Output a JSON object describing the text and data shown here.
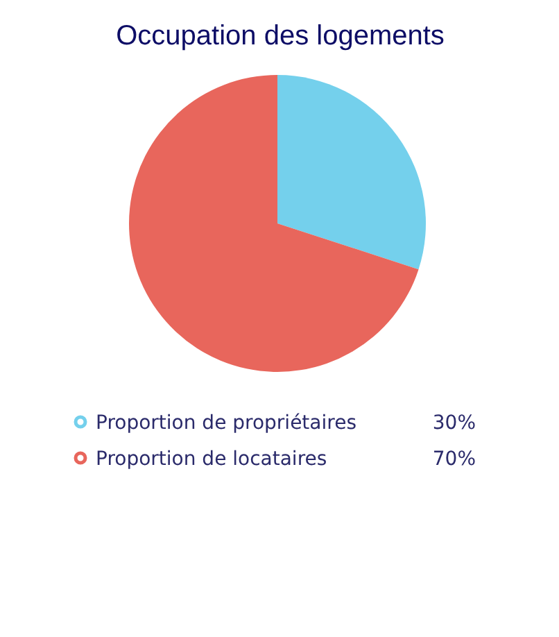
{
  "chart_data": {
    "type": "pie",
    "title": "Occupation des logements",
    "categories": [
      "Proportion de propriétaires",
      "Proportion de locataires"
    ],
    "values": [
      30,
      70
    ],
    "colors": [
      "#74d0ec",
      "#e8665c"
    ],
    "value_labels": [
      "30%",
      "70%"
    ],
    "legend": "bottom"
  }
}
